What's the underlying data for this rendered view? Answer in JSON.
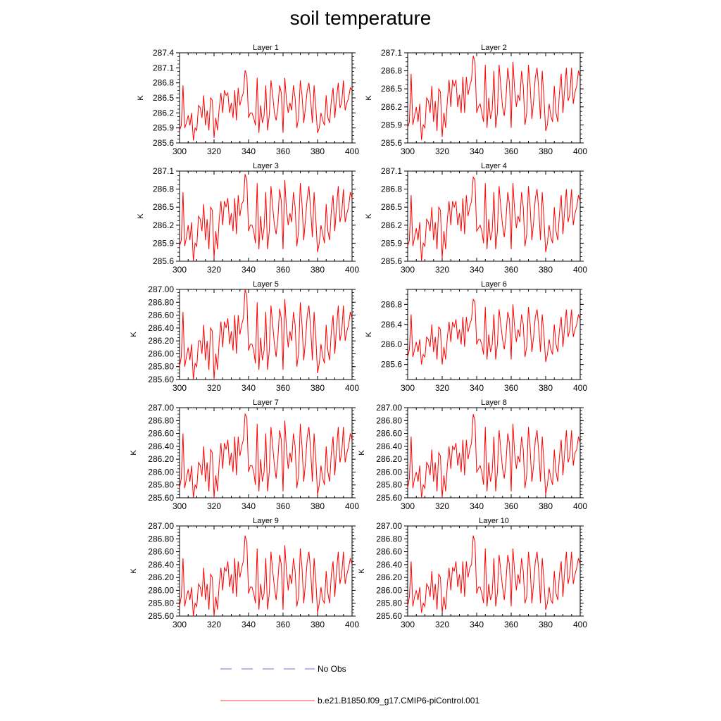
{
  "title": "soil temperature",
  "colors": {
    "model_line": "#ff0000",
    "obs_line": "#6f6fcf",
    "axis": "#000000"
  },
  "legend": {
    "obs_label": "No Obs",
    "model_label": "b.e21.B1850.f09_g17.CMIP6-piControl.001"
  },
  "chart_data": [
    {
      "type": "line",
      "title": "Layer 1",
      "ylabel": "K",
      "xlim": [
        300,
        400
      ],
      "ylim": [
        285.6,
        287.4
      ],
      "xticks": [
        300,
        320,
        340,
        360,
        380,
        400
      ],
      "yticks": [
        285.6,
        285.9,
        286.2,
        286.5,
        286.8,
        287.1,
        287.4
      ],
      "ydigits": 1
    },
    {
      "type": "line",
      "title": "Layer 2",
      "ylabel": "K",
      "xlim": [
        300,
        400
      ],
      "ylim": [
        285.6,
        287.1
      ],
      "xticks": [
        300,
        320,
        340,
        360,
        380,
        400
      ],
      "yticks": [
        285.6,
        285.9,
        286.2,
        286.5,
        286.8,
        287.1
      ],
      "ydigits": 1
    },
    {
      "type": "line",
      "title": "Layer 3",
      "ylabel": "K",
      "xlim": [
        300,
        400
      ],
      "ylim": [
        285.6,
        287.1
      ],
      "xticks": [
        300,
        320,
        340,
        360,
        380,
        400
      ],
      "yticks": [
        285.6,
        285.9,
        286.2,
        286.5,
        286.8,
        287.1
      ],
      "ydigits": 1
    },
    {
      "type": "line",
      "title": "Layer 4",
      "ylabel": "K",
      "xlim": [
        300,
        400
      ],
      "ylim": [
        285.6,
        287.1
      ],
      "xticks": [
        300,
        320,
        340,
        360,
        380,
        400
      ],
      "yticks": [
        285.6,
        285.9,
        286.2,
        286.5,
        286.8,
        287.1
      ],
      "ydigits": 1
    },
    {
      "type": "line",
      "title": "Layer 5",
      "ylabel": "K",
      "xlim": [
        300,
        400
      ],
      "ylim": [
        285.6,
        287.0
      ],
      "xticks": [
        300,
        320,
        340,
        360,
        380,
        400
      ],
      "yticks": [
        285.6,
        285.8,
        286.0,
        286.2,
        286.4,
        286.6,
        286.8,
        287.0
      ],
      "ydigits": 2
    },
    {
      "type": "line",
      "title": "Layer 6",
      "ylabel": "K",
      "xlim": [
        300,
        400
      ],
      "ylim": [
        285.3,
        287.1
      ],
      "xticks": [
        300,
        320,
        340,
        360,
        380,
        400
      ],
      "yticks": [
        285.6,
        286.0,
        286.4,
        286.8
      ],
      "ydigits": 1
    },
    {
      "type": "line",
      "title": "Layer 7",
      "ylabel": "K",
      "xlim": [
        300,
        400
      ],
      "ylim": [
        285.6,
        287.0
      ],
      "xticks": [
        300,
        320,
        340,
        360,
        380,
        400
      ],
      "yticks": [
        285.6,
        285.8,
        286.0,
        286.2,
        286.4,
        286.6,
        286.8,
        287.0
      ],
      "ydigits": 2
    },
    {
      "type": "line",
      "title": "Layer 8",
      "ylabel": "K",
      "xlim": [
        300,
        400
      ],
      "ylim": [
        285.6,
        287.0
      ],
      "xticks": [
        300,
        320,
        340,
        360,
        380,
        400
      ],
      "yticks": [
        285.6,
        285.8,
        286.0,
        286.2,
        286.4,
        286.6,
        286.8,
        287.0
      ],
      "ydigits": 2
    },
    {
      "type": "line",
      "title": "Layer 9",
      "ylabel": "K",
      "xlim": [
        300,
        400
      ],
      "ylim": [
        285.6,
        287.0
      ],
      "xticks": [
        300,
        320,
        340,
        360,
        380,
        400
      ],
      "yticks": [
        285.6,
        285.8,
        286.0,
        286.2,
        286.4,
        286.6,
        286.8,
        287.0
      ],
      "ydigits": 2
    },
    {
      "type": "line",
      "title": "Layer 10",
      "ylabel": "K",
      "xlim": [
        300,
        400
      ],
      "ylim": [
        285.6,
        287.0
      ],
      "xticks": [
        300,
        320,
        340,
        360,
        380,
        400
      ],
      "yticks": [
        285.6,
        285.8,
        286.0,
        286.2,
        286.4,
        286.6,
        286.8,
        287.0
      ],
      "ydigits": 2
    }
  ],
  "series_name": "b.e21.B1850.f09_g17.CMIP6-piControl.001",
  "series_x_start": 300,
  "series_x_step": 1,
  "series_layer1": [
    285.85,
    285.95,
    286.75,
    285.9,
    286.0,
    286.15,
    285.95,
    286.2,
    285.65,
    285.9,
    285.85,
    286.35,
    286.3,
    286.1,
    286.55,
    285.95,
    286.25,
    285.85,
    286.5,
    286.45,
    285.7,
    286.1,
    285.85,
    286.3,
    286.6,
    286.2,
    286.65,
    286.55,
    286.6,
    286.2,
    286.4,
    286.1,
    286.65,
    286.05,
    286.7,
    286.35,
    286.5,
    286.6,
    287.05,
    286.95,
    286.1,
    286.2,
    286.2,
    286.1,
    285.95,
    286.9,
    285.8,
    286.35,
    286.0,
    286.15,
    286.75,
    285.85,
    286.15,
    286.85,
    286.55,
    286.2,
    286.05,
    286.3,
    286.75,
    286.6,
    285.8,
    286.9,
    286.45,
    286.2,
    286.4,
    286.25,
    286.75,
    286.5,
    285.9,
    286.1,
    286.85,
    286.55,
    286.0,
    286.3,
    286.65,
    286.8,
    286.45,
    286.0,
    286.75,
    286.3,
    285.8,
    285.9,
    286.2,
    286.05,
    285.95,
    286.55,
    286.1,
    286.0,
    286.45,
    286.7,
    286.1,
    286.5,
    286.8,
    286.3,
    286.4,
    286.85,
    286.25,
    286.4,
    286.5,
    286.7,
    286.65
  ],
  "series_layer2": [
    285.85,
    285.95,
    286.75,
    285.9,
    286.05,
    286.2,
    285.95,
    286.25,
    285.65,
    285.9,
    285.85,
    286.35,
    286.3,
    286.1,
    286.55,
    285.95,
    286.3,
    285.8,
    286.5,
    286.45,
    285.7,
    286.1,
    285.85,
    286.3,
    286.65,
    286.2,
    286.65,
    286.55,
    286.65,
    286.2,
    286.4,
    286.1,
    286.7,
    286.1,
    286.7,
    286.4,
    286.55,
    286.65,
    287.05,
    286.95,
    286.1,
    286.2,
    286.25,
    286.1,
    285.95,
    286.9,
    285.85,
    286.35,
    286.0,
    286.15,
    286.8,
    285.85,
    286.1,
    286.9,
    286.55,
    286.2,
    286.05,
    286.35,
    286.85,
    286.6,
    285.85,
    286.95,
    286.5,
    286.2,
    286.4,
    286.3,
    286.8,
    286.55,
    285.9,
    286.1,
    286.9,
    286.55,
    286.0,
    286.3,
    286.7,
    286.85,
    286.5,
    286.0,
    286.8,
    286.35,
    285.8,
    285.9,
    286.25,
    286.05,
    285.95,
    286.55,
    286.1,
    285.95,
    286.45,
    286.75,
    286.1,
    286.5,
    286.85,
    286.3,
    286.4,
    286.85,
    286.25,
    286.45,
    286.55,
    286.8,
    286.7
  ],
  "series_layer3": [
    285.85,
    285.95,
    286.75,
    285.85,
    286.0,
    286.2,
    285.95,
    286.25,
    285.6,
    285.9,
    285.85,
    286.35,
    286.3,
    286.1,
    286.55,
    285.95,
    286.3,
    285.8,
    286.5,
    286.45,
    285.65,
    286.1,
    285.8,
    286.3,
    286.6,
    286.2,
    286.6,
    286.5,
    286.65,
    286.2,
    286.4,
    286.1,
    286.65,
    286.05,
    286.7,
    286.35,
    286.55,
    286.6,
    287.05,
    286.95,
    286.1,
    286.2,
    286.2,
    286.1,
    285.9,
    286.9,
    285.8,
    286.35,
    285.95,
    286.15,
    286.75,
    285.8,
    286.1,
    286.85,
    286.5,
    286.2,
    286.05,
    286.3,
    286.8,
    286.6,
    285.8,
    286.95,
    286.45,
    286.2,
    286.4,
    286.25,
    286.75,
    286.5,
    285.85,
    286.1,
    286.9,
    286.55,
    285.95,
    286.3,
    286.65,
    286.85,
    286.45,
    286.0,
    286.75,
    286.3,
    285.75,
    285.9,
    286.2,
    286.05,
    285.9,
    286.55,
    286.1,
    285.95,
    286.45,
    286.7,
    286.1,
    286.5,
    286.85,
    286.25,
    286.4,
    286.8,
    286.25,
    286.4,
    286.5,
    286.75,
    286.65
  ],
  "series_layer4": [
    285.85,
    285.95,
    286.7,
    285.85,
    286.0,
    286.15,
    285.95,
    286.25,
    285.6,
    285.9,
    285.85,
    286.3,
    286.25,
    286.1,
    286.5,
    285.95,
    286.25,
    285.8,
    286.5,
    286.45,
    285.65,
    286.1,
    285.8,
    286.3,
    286.6,
    286.2,
    286.6,
    286.5,
    286.6,
    286.2,
    286.4,
    286.1,
    286.65,
    286.05,
    286.7,
    286.35,
    286.5,
    286.6,
    287.0,
    286.95,
    286.1,
    286.15,
    286.2,
    286.1,
    285.9,
    286.9,
    285.8,
    286.3,
    285.95,
    286.1,
    286.75,
    285.8,
    286.1,
    286.85,
    286.5,
    286.2,
    286.0,
    286.3,
    286.75,
    286.55,
    285.8,
    286.9,
    286.45,
    286.15,
    286.35,
    286.25,
    286.75,
    286.5,
    285.85,
    286.05,
    286.85,
    286.5,
    285.95,
    286.25,
    286.65,
    286.8,
    286.45,
    285.95,
    286.75,
    286.3,
    285.75,
    285.9,
    286.2,
    286.0,
    285.9,
    286.5,
    286.1,
    285.95,
    286.4,
    286.7,
    286.05,
    286.45,
    286.8,
    286.25,
    286.4,
    286.8,
    286.2,
    286.4,
    286.5,
    286.7,
    286.6
  ],
  "series_layer5": [
    285.8,
    285.95,
    286.65,
    285.8,
    285.95,
    286.1,
    285.9,
    286.15,
    285.6,
    285.85,
    285.8,
    286.2,
    286.2,
    286.0,
    286.45,
    285.9,
    286.2,
    285.75,
    286.4,
    286.35,
    285.6,
    286.0,
    285.75,
    286.2,
    286.5,
    286.1,
    286.5,
    286.4,
    286.55,
    286.15,
    286.35,
    286.05,
    286.6,
    286.0,
    286.6,
    286.3,
    286.45,
    286.55,
    287.0,
    286.9,
    286.05,
    286.15,
    286.15,
    286.05,
    285.85,
    286.8,
    285.75,
    286.25,
    285.9,
    286.05,
    286.65,
    285.75,
    286.05,
    286.75,
    286.45,
    286.15,
    285.95,
    286.25,
    286.7,
    286.55,
    285.75,
    286.85,
    286.4,
    286.1,
    286.35,
    286.2,
    286.65,
    286.45,
    285.8,
    286.0,
    286.8,
    286.45,
    285.9,
    286.2,
    286.6,
    286.75,
    286.4,
    285.9,
    286.65,
    286.25,
    285.7,
    285.85,
    286.15,
    285.95,
    285.85,
    286.45,
    286.05,
    285.9,
    286.35,
    286.6,
    286.0,
    286.4,
    286.75,
    286.2,
    286.35,
    286.75,
    286.2,
    286.35,
    286.45,
    286.65,
    286.55
  ],
  "series_layer6": [
    285.75,
    285.9,
    286.6,
    285.75,
    285.9,
    286.05,
    285.85,
    286.1,
    285.6,
    285.8,
    285.75,
    286.15,
    286.1,
    285.95,
    286.4,
    285.85,
    286.15,
    285.7,
    286.35,
    286.3,
    285.6,
    285.95,
    285.7,
    286.15,
    286.45,
    286.05,
    286.45,
    286.35,
    286.5,
    286.1,
    286.3,
    286.0,
    286.55,
    285.95,
    286.55,
    286.25,
    286.4,
    286.5,
    286.9,
    286.85,
    286.0,
    286.1,
    286.1,
    286.0,
    285.8,
    286.75,
    285.7,
    286.2,
    285.85,
    286.0,
    286.6,
    285.7,
    286.0,
    286.7,
    286.4,
    286.1,
    285.9,
    286.2,
    286.65,
    286.5,
    285.7,
    286.8,
    286.35,
    286.05,
    286.3,
    286.15,
    286.6,
    286.4,
    285.75,
    285.95,
    286.75,
    286.4,
    285.85,
    286.15,
    286.55,
    286.7,
    286.35,
    285.85,
    286.6,
    286.2,
    285.65,
    285.8,
    286.1,
    285.9,
    285.8,
    286.4,
    286.0,
    285.85,
    286.3,
    286.55,
    285.95,
    286.35,
    286.7,
    286.15,
    286.3,
    286.7,
    286.15,
    286.3,
    286.4,
    286.6,
    286.5
  ],
  "series_layer7": [
    285.75,
    285.9,
    286.6,
    285.75,
    285.9,
    286.05,
    285.85,
    286.1,
    285.6,
    285.8,
    285.75,
    286.15,
    286.1,
    285.95,
    286.4,
    285.85,
    286.15,
    285.7,
    286.35,
    286.3,
    285.6,
    285.95,
    285.7,
    286.15,
    286.45,
    286.05,
    286.45,
    286.35,
    286.5,
    286.1,
    286.3,
    286.0,
    286.55,
    285.95,
    286.55,
    286.25,
    286.4,
    286.5,
    286.9,
    286.85,
    286.0,
    286.1,
    286.1,
    286.0,
    285.8,
    286.75,
    285.7,
    286.2,
    285.85,
    286.0,
    286.6,
    285.7,
    286.0,
    286.7,
    286.4,
    286.1,
    285.9,
    286.2,
    286.65,
    286.5,
    285.7,
    286.8,
    286.35,
    286.05,
    286.3,
    286.15,
    286.6,
    286.4,
    285.75,
    285.95,
    286.75,
    286.4,
    285.85,
    286.15,
    286.55,
    286.7,
    286.35,
    285.85,
    286.6,
    286.2,
    285.65,
    285.8,
    286.1,
    285.9,
    285.8,
    286.4,
    286.0,
    285.85,
    286.3,
    286.55,
    285.95,
    286.35,
    286.7,
    286.15,
    286.3,
    286.7,
    286.15,
    286.3,
    286.4,
    286.6,
    286.5
  ],
  "series_layer8": [
    285.75,
    285.9,
    286.55,
    285.75,
    285.9,
    286.0,
    285.85,
    286.1,
    285.6,
    285.8,
    285.75,
    286.15,
    286.1,
    285.95,
    286.35,
    285.85,
    286.15,
    285.7,
    286.3,
    286.25,
    285.6,
    285.95,
    285.7,
    286.1,
    286.4,
    286.05,
    286.4,
    286.35,
    286.45,
    286.1,
    286.3,
    286.0,
    286.5,
    285.95,
    286.5,
    286.2,
    286.35,
    286.45,
    286.9,
    286.8,
    286.0,
    286.05,
    286.1,
    286.0,
    285.8,
    286.7,
    285.7,
    286.15,
    285.85,
    286.0,
    286.55,
    285.7,
    286.0,
    286.65,
    286.35,
    286.05,
    285.9,
    286.15,
    286.6,
    286.45,
    285.7,
    286.75,
    286.3,
    286.05,
    286.25,
    286.15,
    286.55,
    286.35,
    285.75,
    285.95,
    286.7,
    286.35,
    285.85,
    286.1,
    286.5,
    286.65,
    286.3,
    285.85,
    286.55,
    286.15,
    285.65,
    285.8,
    286.05,
    285.9,
    285.8,
    286.35,
    286.0,
    285.85,
    286.25,
    286.5,
    285.95,
    286.3,
    286.65,
    286.15,
    286.25,
    286.65,
    286.1,
    286.3,
    286.35,
    286.55,
    286.45
  ],
  "series_layer9": [
    285.75,
    285.9,
    286.5,
    285.75,
    285.9,
    286.0,
    285.85,
    286.05,
    285.6,
    285.8,
    285.75,
    286.1,
    286.05,
    285.9,
    286.35,
    285.85,
    286.1,
    285.7,
    286.25,
    286.2,
    285.6,
    285.9,
    285.7,
    286.1,
    286.35,
    286.0,
    286.35,
    286.3,
    286.45,
    286.05,
    286.25,
    285.95,
    286.5,
    285.9,
    286.45,
    286.2,
    286.35,
    286.45,
    286.85,
    286.75,
    285.95,
    286.05,
    286.05,
    285.95,
    285.8,
    286.65,
    285.7,
    286.1,
    285.85,
    285.95,
    286.5,
    285.7,
    285.95,
    286.6,
    286.3,
    286.05,
    285.85,
    286.15,
    286.55,
    286.4,
    285.7,
    286.7,
    286.3,
    286.0,
    286.25,
    286.1,
    286.5,
    286.3,
    285.75,
    285.9,
    286.65,
    286.35,
    285.8,
    286.1,
    286.45,
    286.6,
    286.3,
    285.8,
    286.5,
    286.15,
    285.65,
    285.8,
    286.05,
    285.85,
    285.8,
    286.3,
    285.95,
    285.8,
    286.25,
    286.45,
    285.9,
    286.3,
    286.6,
    286.1,
    286.25,
    286.6,
    286.1,
    286.25,
    286.35,
    286.5,
    286.4
  ],
  "series_layer10": [
    285.75,
    285.9,
    286.45,
    285.75,
    285.9,
    286.0,
    285.85,
    286.05,
    285.65,
    285.8,
    285.75,
    286.1,
    286.05,
    285.9,
    286.3,
    285.85,
    286.1,
    285.7,
    286.25,
    286.2,
    285.65,
    285.9,
    285.7,
    286.1,
    286.35,
    286.0,
    286.35,
    286.3,
    286.45,
    286.05,
    286.25,
    285.95,
    286.45,
    285.9,
    286.45,
    286.2,
    286.35,
    286.4,
    286.85,
    286.75,
    285.95,
    286.05,
    286.05,
    285.95,
    285.8,
    286.65,
    285.75,
    286.1,
    285.85,
    285.95,
    286.5,
    285.75,
    285.95,
    286.55,
    286.3,
    286.05,
    285.85,
    286.15,
    286.55,
    286.4,
    285.75,
    286.65,
    286.3,
    286.0,
    286.25,
    286.1,
    286.5,
    286.3,
    285.8,
    285.9,
    286.6,
    286.35,
    285.8,
    286.1,
    286.45,
    286.6,
    286.3,
    285.8,
    286.5,
    286.15,
    285.7,
    285.8,
    286.05,
    285.85,
    285.8,
    286.3,
    285.95,
    285.85,
    286.25,
    286.45,
    285.9,
    286.3,
    286.6,
    286.1,
    286.25,
    286.6,
    286.1,
    286.25,
    286.35,
    286.5,
    286.4
  ]
}
